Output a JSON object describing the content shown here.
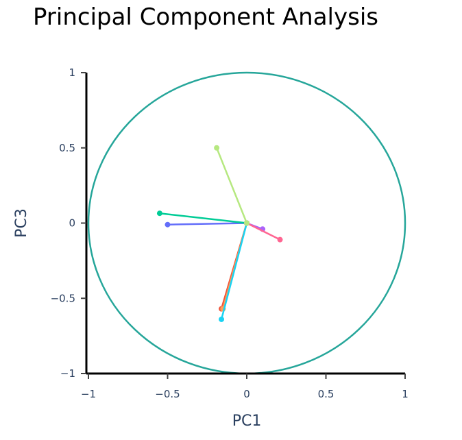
{
  "chart_data": {
    "type": "scatter",
    "title": "Principal Component Analysis",
    "xlabel": "PC1",
    "ylabel": "PC3",
    "xlim": [
      -1,
      1
    ],
    "ylim": [
      -1,
      1
    ],
    "x_ticks": [
      {
        "value": -1,
        "label": "−1"
      },
      {
        "value": -0.5,
        "label": "−0.5"
      },
      {
        "value": 0,
        "label": "0"
      },
      {
        "value": 0.5,
        "label": "0.5"
      },
      {
        "value": 1,
        "label": "1"
      }
    ],
    "y_ticks": [
      {
        "value": 1,
        "label": "1"
      },
      {
        "value": 0.5,
        "label": "0.5"
      },
      {
        "value": 0,
        "label": "0"
      },
      {
        "value": -0.5,
        "label": "−0.5"
      },
      {
        "value": -1,
        "label": "−1"
      }
    ],
    "grid": false,
    "circle": {
      "center": [
        0,
        0
      ],
      "radius": 1,
      "color": "#26a69a"
    },
    "series": [
      {
        "color": "#636efa",
        "x": [
          0,
          -0.5
        ],
        "y": [
          0,
          -0.01
        ]
      },
      {
        "color": "#ef553b",
        "x": [
          0,
          -0.16
        ],
        "y": [
          0,
          -0.57
        ]
      },
      {
        "color": "#00cc96",
        "x": [
          0,
          -0.55
        ],
        "y": [
          0,
          0.065
        ]
      },
      {
        "color": "#ab63fa",
        "x": [
          0,
          0.1
        ],
        "y": [
          0,
          -0.04
        ]
      },
      {
        "color": "#ffa15a",
        "x": [
          0,
          -0.15
        ],
        "y": [
          0,
          -0.57
        ]
      },
      {
        "color": "#19d3f3",
        "x": [
          0,
          -0.16
        ],
        "y": [
          0,
          -0.64
        ]
      },
      {
        "color": "#ff6692",
        "x": [
          0,
          0.21
        ],
        "y": [
          0,
          -0.11
        ]
      },
      {
        "color": "#b6e880",
        "x": [
          0,
          -0.19
        ],
        "y": [
          0,
          0.5
        ]
      }
    ]
  }
}
